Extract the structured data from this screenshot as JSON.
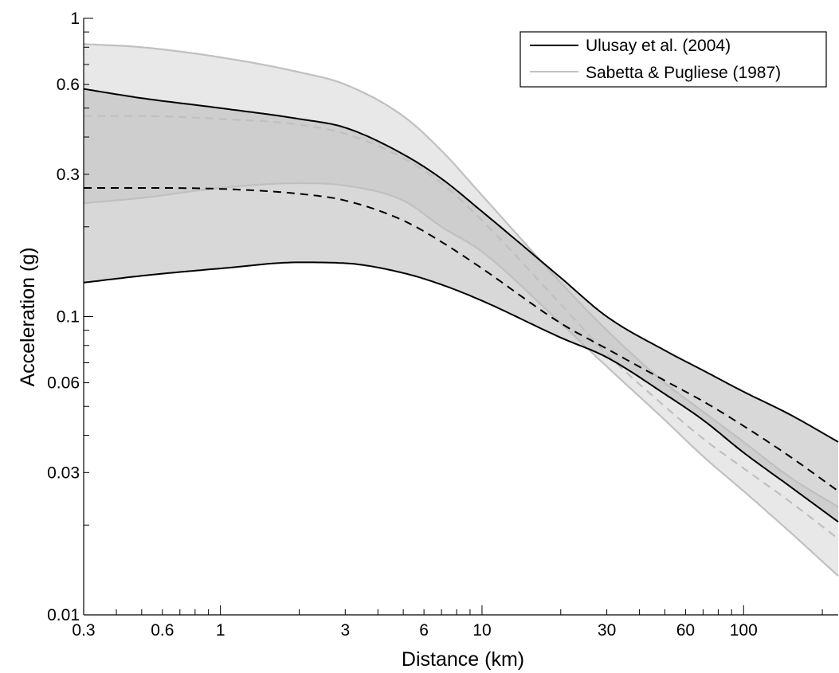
{
  "chart_data": {
    "type": "line",
    "xlabel": "Distance (km)",
    "ylabel": "Acceleration (g)",
    "x_scale": "log",
    "y_scale": "log",
    "xlim": [
      0.3,
      230
    ],
    "ylim": [
      0.01,
      1
    ],
    "x_ticks": [
      {
        "value": 0.3,
        "label": "0.3"
      },
      {
        "value": 0.6,
        "label": "0.6"
      },
      {
        "value": 1,
        "label": "1"
      },
      {
        "value": 3,
        "label": "3"
      },
      {
        "value": 6,
        "label": "6"
      },
      {
        "value": 10,
        "label": "10"
      },
      {
        "value": 30,
        "label": "30"
      },
      {
        "value": 60,
        "label": "60"
      },
      {
        "value": 100,
        "label": "100"
      }
    ],
    "y_ticks": [
      {
        "value": 0.01,
        "label": "0.01"
      },
      {
        "value": 0.03,
        "label": "0.03"
      },
      {
        "value": 0.06,
        "label": "0.06"
      },
      {
        "value": 0.1,
        "label": "0.1"
      },
      {
        "value": 0.3,
        "label": "0.3"
      },
      {
        "value": 0.6,
        "label": "0.6"
      },
      {
        "value": 1,
        "label": "1"
      }
    ],
    "grid": false,
    "legend_position": "top-right",
    "legend": [
      {
        "label": "Ulusay et al. (2004)",
        "color": "#000000"
      },
      {
        "label": "Sabetta & Pugliese (1987)",
        "color": "#c0c0c0"
      }
    ],
    "series": [
      {
        "name": "Ulusay et al. (2004)",
        "color": "#000000",
        "fill_color": "#b8b8b8",
        "x": [
          0.3,
          0.5,
          1,
          2,
          3,
          5,
          7,
          10,
          20,
          30,
          50,
          70,
          100,
          150,
          230
        ],
        "median": [
          0.27,
          0.27,
          0.268,
          0.258,
          0.245,
          0.21,
          0.178,
          0.145,
          0.095,
          0.078,
          0.061,
          0.052,
          0.043,
          0.034,
          0.026
        ],
        "upper": [
          0.58,
          0.54,
          0.5,
          0.46,
          0.43,
          0.35,
          0.29,
          0.225,
          0.135,
          0.1,
          0.077,
          0.066,
          0.056,
          0.047,
          0.038
        ],
        "lower": [
          0.13,
          0.137,
          0.145,
          0.152,
          0.151,
          0.14,
          0.128,
          0.113,
          0.085,
          0.073,
          0.055,
          0.045,
          0.035,
          0.027,
          0.0205
        ]
      },
      {
        "name": "Sabetta & Pugliese (1987)",
        "color": "#c0c0c0",
        "fill_color": "#d9d9d9",
        "x": [
          0.3,
          0.5,
          1,
          2,
          3,
          5,
          7,
          10,
          20,
          30,
          50,
          70,
          100,
          150,
          230
        ],
        "median": [
          0.47,
          0.47,
          0.46,
          0.44,
          0.41,
          0.34,
          0.28,
          0.21,
          0.11,
          0.075,
          0.05,
          0.039,
          0.031,
          0.024,
          0.018
        ],
        "upper": [
          0.82,
          0.8,
          0.74,
          0.66,
          0.6,
          0.47,
          0.36,
          0.255,
          0.13,
          0.09,
          0.06,
          0.048,
          0.038,
          0.029,
          0.023
        ],
        "lower": [
          0.24,
          0.25,
          0.27,
          0.28,
          0.275,
          0.245,
          0.2,
          0.165,
          0.095,
          0.068,
          0.045,
          0.034,
          0.026,
          0.019,
          0.0135
        ]
      }
    ]
  }
}
